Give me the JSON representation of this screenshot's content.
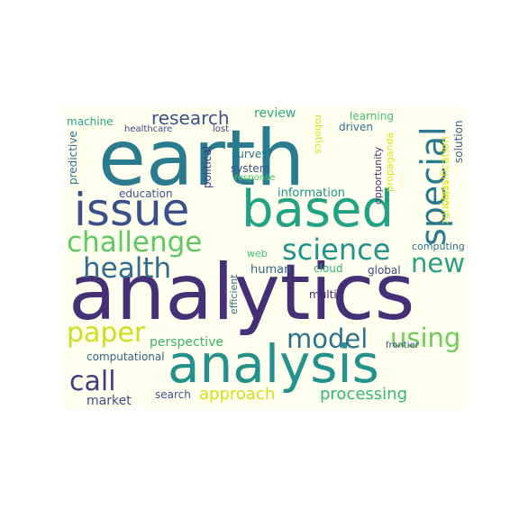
{
  "words": [
    {
      "text": "earth",
      "color": "#2a7b8e"
    },
    {
      "text": "analytics",
      "color": "#452f76"
    },
    {
      "text": "based",
      "color": "#22a285"
    },
    {
      "text": "issue",
      "color": "#3b4f8a"
    },
    {
      "text": "analysis",
      "color": "#23918c"
    },
    {
      "text": "challenge",
      "color": "#5ec962"
    },
    {
      "text": "science",
      "color": "#22928c"
    },
    {
      "text": "special",
      "color": "#29798e"
    },
    {
      "text": "health",
      "color": "#2f6c8e"
    },
    {
      "text": "new",
      "color": "#2d9f88"
    },
    {
      "text": "paper",
      "color": "#c8e020"
    },
    {
      "text": "model",
      "color": "#2c728e"
    },
    {
      "text": "using",
      "color": "#6ece58"
    },
    {
      "text": "call",
      "color": "#413c82"
    },
    {
      "text": "research",
      "color": "#3b528b"
    },
    {
      "text": "approach",
      "color": "#d0e11c"
    },
    {
      "text": "processing",
      "color": "#35b779"
    },
    {
      "text": "perspective",
      "color": "#3db26a"
    },
    {
      "text": "review",
      "color": "#2ea887"
    },
    {
      "text": "human",
      "color": "#31678e"
    },
    {
      "text": "market",
      "color": "#3e4a89"
    },
    {
      "text": "computational",
      "color": "#34608d"
    },
    {
      "text": "search",
      "color": "#3a548c"
    },
    {
      "text": "information",
      "color": "#21918c"
    },
    {
      "text": "education",
      "color": "#3d4e8a"
    },
    {
      "text": "system",
      "color": "#3b528b"
    },
    {
      "text": "survey",
      "color": "#2b758e"
    },
    {
      "text": "response",
      "color": "#4ac16d"
    },
    {
      "text": "learning",
      "color": "#46bd6f"
    },
    {
      "text": "driven",
      "color": "#2d708e"
    },
    {
      "text": "machine",
      "color": "#26a784"
    },
    {
      "text": "healthcare",
      "color": "#3f4788"
    },
    {
      "text": "lost",
      "color": "#443a83"
    },
    {
      "text": "predictive",
      "color": "#2c718e"
    },
    {
      "text": "political",
      "color": "#443b84"
    },
    {
      "text": "robotics",
      "color": "#d8e219"
    },
    {
      "text": "opportunity",
      "color": "#472d7b"
    },
    {
      "text": "propaganda",
      "color": "#dde318"
    },
    {
      "text": "classification",
      "color": "#e5e419"
    },
    {
      "text": "scientific",
      "color": "#e2e418"
    },
    {
      "text": "solution",
      "color": "#355f8d"
    },
    {
      "text": "computing",
      "color": "#2e6f8e"
    },
    {
      "text": "global",
      "color": "#3e4c8a"
    },
    {
      "text": "cloud",
      "color": "#2ab07f"
    },
    {
      "text": "web",
      "color": "#3fbc73"
    },
    {
      "text": "efficient",
      "color": "#2c738e"
    },
    {
      "text": "multi",
      "color": "#482071"
    },
    {
      "text": "frontier",
      "color": "#3f4889"
    }
  ]
}
